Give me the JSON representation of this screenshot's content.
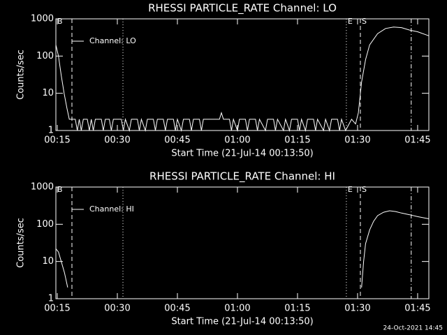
{
  "chart_data": [
    {
      "type": "line",
      "title": "RHESSI PARTICLE_RATE Channel: LO",
      "xlabel": "Start Time (21-Jul-14 00:13:50)",
      "ylabel": "Counts/sec",
      "xlim": [
        14.65,
        107.8
      ],
      "xticks": [
        {
          "value": 15,
          "label": "00:15"
        },
        {
          "value": 30,
          "label": "00:30"
        },
        {
          "value": 45,
          "label": "00:45"
        },
        {
          "value": 60,
          "label": "01:00"
        },
        {
          "value": 75,
          "label": "01:15"
        },
        {
          "value": 90,
          "label": "01:30"
        },
        {
          "value": 105,
          "label": "01:45"
        }
      ],
      "ylim": [
        1,
        1000
      ],
      "yticks": [
        1,
        10,
        100,
        1000
      ],
      "log_y": true,
      "markers": [
        {
          "x": 14.65,
          "label": "B",
          "style": "dotted"
        },
        {
          "x": 18.66,
          "style": "dashed"
        },
        {
          "x": 31.4,
          "style": "dotted"
        },
        {
          "x": 87.2,
          "label": "E",
          "style": "dotted"
        },
        {
          "x": 90.7,
          "label": "S",
          "style": "dashed"
        },
        {
          "x": 103.4,
          "style": "dashdot"
        }
      ],
      "series": [
        {
          "name": "Channel: LO",
          "color": "#ffffff",
          "x": [
            14.65,
            15.3,
            16,
            16.7,
            17.4,
            18,
            19.5,
            20,
            20.5,
            21,
            21.5,
            22.5,
            23,
            23.5,
            24,
            24.5,
            26,
            26.5,
            27,
            28,
            28.5,
            29,
            31,
            31.5,
            32,
            33,
            33.5,
            35,
            35.5,
            36,
            37,
            37.5,
            39,
            39.5,
            40,
            41.5,
            42,
            42.5,
            44,
            44.5,
            45,
            46,
            46.5,
            48,
            48.5,
            49,
            50.5,
            51,
            51.5,
            53,
            55.5,
            56,
            56.5,
            58,
            58.5,
            59,
            60,
            60.5,
            62,
            62.5,
            63,
            64.5,
            65,
            65.5,
            67,
            67.5,
            69,
            69.5,
            70,
            71.5,
            72,
            73,
            73.5,
            75,
            75.5,
            76,
            77,
            77.5,
            79,
            79.5,
            80,
            81.5,
            82,
            83,
            83.5,
            85,
            85.5,
            86,
            87,
            88.5,
            89.5,
            90.2,
            91,
            92,
            93,
            95,
            97,
            99,
            101,
            103,
            105,
            107.8
          ],
          "values": [
            200,
            100,
            30,
            10,
            4,
            2,
            2,
            1,
            2,
            1,
            2,
            2,
            1,
            2,
            1,
            2,
            2,
            1,
            2,
            2,
            1,
            2,
            2,
            1,
            2,
            1,
            2,
            2,
            1,
            2,
            1,
            2,
            2,
            1,
            2,
            2,
            1,
            2,
            2,
            1,
            2,
            1,
            2,
            2,
            1,
            2,
            2,
            1,
            2,
            2,
            2,
            3,
            2,
            2,
            1,
            2,
            1,
            2,
            2,
            1,
            2,
            2,
            1,
            2,
            1,
            2,
            2,
            1,
            2,
            1,
            2,
            1,
            2,
            2,
            1,
            2,
            1,
            2,
            2,
            1,
            2,
            1,
            2,
            1,
            2,
            2,
            1,
            2,
            1,
            2,
            1.5,
            3,
            20,
            80,
            200,
            400,
            550,
            600,
            580,
            500,
            450,
            350
          ]
        }
      ]
    },
    {
      "type": "line",
      "title": "RHESSI PARTICLE_RATE Channel: HI",
      "xlabel": "Start Time (21-Jul-14 00:13:50)",
      "ylabel": "Counts/sec",
      "xlim": [
        14.65,
        107.8
      ],
      "xticks": [
        {
          "value": 15,
          "label": "00:15"
        },
        {
          "value": 30,
          "label": "00:30"
        },
        {
          "value": 45,
          "label": "00:45"
        },
        {
          "value": 60,
          "label": "01:00"
        },
        {
          "value": 75,
          "label": "01:15"
        },
        {
          "value": 90,
          "label": "01:30"
        },
        {
          "value": 105,
          "label": "01:45"
        }
      ],
      "ylim": [
        1,
        1000
      ],
      "yticks": [
        1,
        10,
        100,
        1000
      ],
      "log_y": true,
      "markers": [
        {
          "x": 14.65,
          "label": "B",
          "style": "dotted"
        },
        {
          "x": 18.66,
          "style": "dashed"
        },
        {
          "x": 31.4,
          "style": "dotted"
        },
        {
          "x": 87.2,
          "label": "E",
          "style": "dotted"
        },
        {
          "x": 90.7,
          "label": "S",
          "style": "dashed"
        },
        {
          "x": 103.4,
          "style": "dashdot"
        }
      ],
      "series": [
        {
          "name": "Channel: HI",
          "color": "#ffffff",
          "x": [
            14.65,
            15.3,
            16,
            16.8,
            17.6,
            50,
            91,
            91.5,
            92,
            93,
            94,
            95,
            96.5,
            98,
            99.5,
            101,
            103,
            105,
            107.8
          ],
          "values": [
            22,
            18,
            10,
            5,
            2,
            null,
            2,
            10,
            30,
            70,
            120,
            170,
            210,
            230,
            220,
            200,
            180,
            160,
            140
          ]
        }
      ]
    }
  ],
  "footer": "24-Oct-2021 14:45"
}
